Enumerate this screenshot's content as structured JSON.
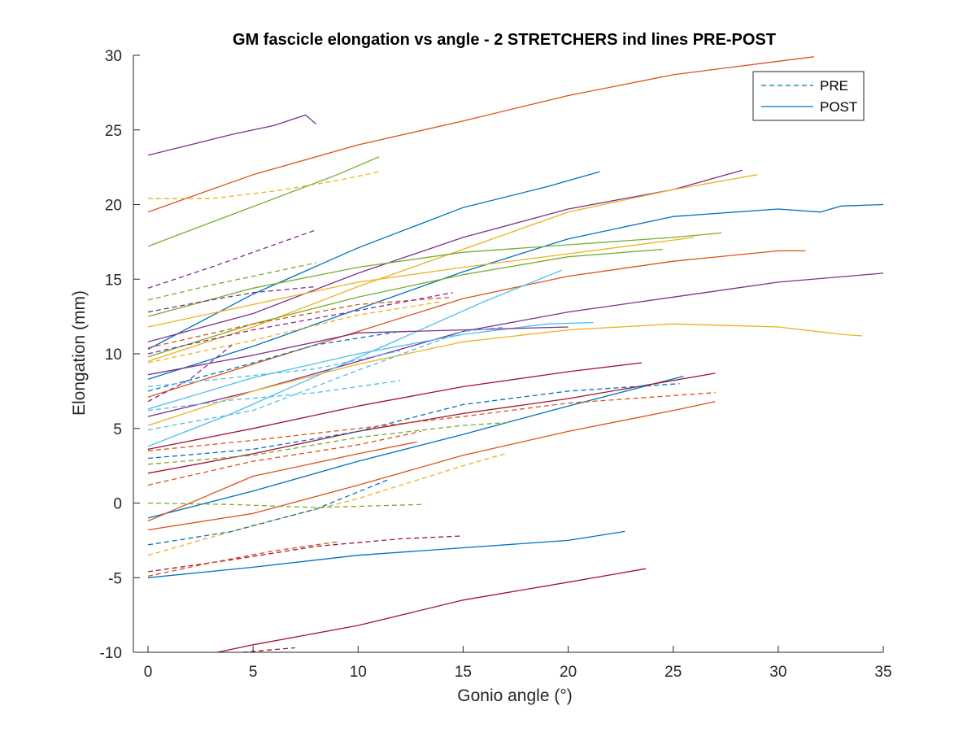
{
  "chart_data": {
    "type": "line",
    "title": "GM fascicle elongation vs angle - 2 STRETCHERS ind lines PRE-POST",
    "xlabel": "Gonio angle (°)",
    "ylabel": "Elongation (mm)",
    "xlim": [
      0,
      35
    ],
    "ylim": [
      -10,
      30
    ],
    "xticks": [
      0,
      5,
      10,
      15,
      20,
      25,
      30,
      35
    ],
    "yticks": [
      -10,
      -5,
      0,
      5,
      10,
      15,
      20,
      25,
      30
    ],
    "xtick_labels": [
      "0",
      "5",
      "10",
      "15",
      "20",
      "25",
      "30",
      "35"
    ],
    "ytick_labels": [
      "-10",
      "-5",
      "0",
      "5",
      "10",
      "15",
      "20",
      "25",
      "30"
    ],
    "grid": false,
    "legend": {
      "placement": "top-right",
      "entries": [
        {
          "label": "PRE",
          "style": "dashed",
          "color": "#0072BD"
        },
        {
          "label": "POST",
          "style": "solid",
          "color": "#0072BD"
        }
      ]
    },
    "colors": {
      "blue": "#0072BD",
      "orange": "#D95319",
      "yellow": "#EDB120",
      "purple": "#7E2F8E",
      "green": "#77AC30",
      "cyan": "#4DBEEE",
      "maroon": "#A2142F"
    },
    "series": [
      {
        "style": "solid",
        "color": "#D95319",
        "x": [
          0,
          5,
          10,
          15,
          20,
          25,
          30,
          31.7
        ],
        "y": [
          19.5,
          22.0,
          24.0,
          25.6,
          27.3,
          28.7,
          29.6,
          29.9
        ]
      },
      {
        "style": "solid",
        "color": "#7E2F8E",
        "x": [
          0,
          2,
          4,
          6,
          7.5,
          8
        ],
        "y": [
          23.3,
          24.0,
          24.7,
          25.3,
          26.0,
          25.4
        ]
      },
      {
        "style": "solid",
        "color": "#77AC30",
        "x": [
          0,
          3,
          6,
          9,
          11
        ],
        "y": [
          17.2,
          18.8,
          20.4,
          22.0,
          23.2
        ]
      },
      {
        "style": "dashed",
        "color": "#EDB120",
        "x": [
          0,
          3,
          6,
          9,
          11
        ],
        "y": [
          20.4,
          20.4,
          20.9,
          21.6,
          22.2
        ]
      },
      {
        "style": "solid",
        "color": "#0072BD",
        "x": [
          0,
          5,
          10,
          15,
          19,
          21.5
        ],
        "y": [
          10.3,
          14.0,
          17.1,
          19.8,
          21.2,
          22.2
        ]
      },
      {
        "style": "solid",
        "color": "#7E2F8E",
        "x": [
          0,
          5,
          10,
          15,
          20,
          25,
          28.3
        ],
        "y": [
          10.8,
          12.7,
          15.4,
          17.8,
          19.7,
          21.0,
          22.3
        ]
      },
      {
        "style": "solid",
        "color": "#EDB120",
        "x": [
          0,
          5,
          10,
          15,
          20,
          25,
          29
        ],
        "y": [
          9.5,
          11.8,
          14.5,
          17.0,
          19.5,
          21.0,
          22.0
        ]
      },
      {
        "style": "solid",
        "color": "#0072BD",
        "x": [
          0,
          5,
          10,
          15,
          20,
          25,
          30,
          32,
          33,
          35
        ],
        "y": [
          8.3,
          10.5,
          13.0,
          15.5,
          17.7,
          19.2,
          19.7,
          19.5,
          19.9,
          20.0
        ]
      },
      {
        "style": "solid",
        "color": "#77AC30",
        "x": [
          0,
          5,
          10,
          15,
          20,
          25,
          27.3
        ],
        "y": [
          12.5,
          14.4,
          15.8,
          16.8,
          17.3,
          17.8,
          18.1
        ]
      },
      {
        "style": "solid",
        "color": "#EDB120",
        "x": [
          0,
          5,
          10,
          15,
          20,
          26
        ],
        "y": [
          11.8,
          13.3,
          14.8,
          15.8,
          16.7,
          17.8
        ]
      },
      {
        "style": "solid",
        "color": "#77AC30",
        "x": [
          0,
          5,
          10,
          15,
          20,
          24.5
        ],
        "y": [
          9.8,
          12.0,
          13.8,
          15.3,
          16.5,
          17.0
        ]
      },
      {
        "style": "solid",
        "color": "#D95319",
        "x": [
          0,
          5,
          10,
          15,
          20,
          25,
          30,
          31.3
        ],
        "y": [
          7.1,
          9.3,
          11.5,
          13.7,
          15.2,
          16.2,
          16.9,
          16.9
        ]
      },
      {
        "style": "solid",
        "color": "#7E2F8E",
        "x": [
          0,
          5,
          10,
          15,
          20,
          25,
          30,
          35
        ],
        "y": [
          5.8,
          7.5,
          9.5,
          11.5,
          12.8,
          13.8,
          14.8,
          15.4
        ]
      },
      {
        "style": "solid",
        "color": "#4DBEEE",
        "x": [
          0,
          4,
          8,
          12,
          16,
          19.7
        ],
        "y": [
          3.8,
          6.0,
          8.5,
          11.0,
          13.5,
          15.6
        ]
      },
      {
        "style": "solid",
        "color": "#EDB120",
        "x": [
          0,
          5,
          10,
          15,
          20,
          25,
          30,
          33,
          34
        ],
        "y": [
          5.2,
          7.5,
          9.3,
          10.8,
          11.6,
          12.0,
          11.8,
          11.3,
          11.2
        ]
      },
      {
        "style": "solid",
        "color": "#4DBEEE",
        "x": [
          0,
          5,
          10,
          15,
          19,
          21.2
        ],
        "y": [
          6.3,
          8.4,
          10.0,
          11.3,
          12.0,
          12.1
        ]
      },
      {
        "style": "solid",
        "color": "#7E2F8E",
        "x": [
          0,
          5,
          10,
          15,
          20
        ],
        "y": [
          8.6,
          9.9,
          11.4,
          11.6,
          11.8
        ]
      },
      {
        "style": "solid",
        "color": "#A2142F",
        "x": [
          0,
          5,
          10,
          15,
          20,
          23.5
        ],
        "y": [
          3.6,
          5.0,
          6.5,
          7.8,
          8.8,
          9.4
        ]
      },
      {
        "style": "solid",
        "color": "#0072BD",
        "x": [
          0,
          5,
          10,
          15,
          20,
          25.5
        ],
        "y": [
          -1.0,
          0.8,
          2.8,
          4.6,
          6.5,
          8.5
        ]
      },
      {
        "style": "solid",
        "color": "#A2142F",
        "x": [
          0,
          5,
          10,
          15,
          20,
          27
        ],
        "y": [
          2.0,
          3.3,
          4.8,
          6.0,
          7.0,
          8.7
        ]
      },
      {
        "style": "solid",
        "color": "#D95319",
        "x": [
          0,
          5,
          10,
          15,
          20,
          25,
          27
        ],
        "y": [
          -1.8,
          -0.7,
          1.2,
          3.2,
          4.8,
          6.2,
          6.8
        ]
      },
      {
        "style": "solid",
        "color": "#D95319",
        "x": [
          0,
          5,
          10,
          12.8
        ],
        "y": [
          -1.2,
          1.8,
          3.3,
          4.1
        ]
      },
      {
        "style": "solid",
        "color": "#0072BD",
        "x": [
          0,
          5,
          10,
          15,
          20,
          22.7
        ],
        "y": [
          -5.0,
          -4.3,
          -3.5,
          -3.0,
          -2.5,
          -1.9
        ]
      },
      {
        "style": "solid",
        "color": "#A2142F",
        "x": [
          3.3,
          5,
          10,
          15,
          20,
          23.7
        ],
        "y": [
          -10.0,
          -9.5,
          -8.2,
          -6.5,
          -5.3,
          -4.4
        ]
      },
      {
        "style": "dashed",
        "color": "#7E2F8E",
        "x": [
          0,
          3,
          6,
          8
        ],
        "y": [
          14.4,
          15.8,
          17.3,
          18.3
        ]
      },
      {
        "style": "dashed",
        "color": "#77AC30",
        "x": [
          0,
          3,
          6,
          8
        ],
        "y": [
          13.6,
          14.6,
          15.5,
          16.1
        ]
      },
      {
        "style": "dashed",
        "color": "#7E2F8E",
        "x": [
          0,
          3,
          5,
          8
        ],
        "y": [
          12.8,
          13.6,
          14.1,
          14.5
        ]
      },
      {
        "style": "dashed",
        "color": "#D95319",
        "x": [
          0,
          5,
          10,
          14.5
        ],
        "y": [
          10.4,
          12.0,
          13.3,
          13.8
        ]
      },
      {
        "style": "dashed",
        "color": "#7E2F8E",
        "x": [
          0,
          5,
          10,
          14.5
        ],
        "y": [
          10.0,
          11.6,
          12.9,
          14.1
        ]
      },
      {
        "style": "dashed",
        "color": "#EDB120",
        "x": [
          0,
          5,
          10,
          14
        ],
        "y": [
          9.4,
          10.9,
          12.6,
          13.5
        ]
      },
      {
        "style": "dashed",
        "color": "#0072BD",
        "x": [
          0,
          4,
          8,
          12
        ],
        "y": [
          7.5,
          9.0,
          10.6,
          11.5
        ]
      },
      {
        "style": "dashed",
        "color": "#4DBEEE",
        "x": [
          0,
          4,
          8,
          12
        ],
        "y": [
          7.8,
          8.4,
          9.0,
          10.2
        ]
      },
      {
        "style": "dashed",
        "color": "#7E2F8E",
        "x": [
          0,
          2,
          4
        ],
        "y": [
          6.8,
          8.3,
          10.6
        ]
      },
      {
        "style": "dashed",
        "color": "#4DBEEE",
        "x": [
          0,
          4,
          8,
          12
        ],
        "y": [
          6.2,
          6.9,
          7.4,
          8.2
        ]
      },
      {
        "style": "dashed",
        "color": "#4DBEEE",
        "x": [
          0,
          5,
          10,
          15,
          17
        ],
        "y": [
          4.9,
          6.2,
          8.9,
          11.5,
          11.8
        ]
      },
      {
        "style": "dashed",
        "color": "#0072BD",
        "x": [
          0,
          5,
          10,
          15,
          20,
          25.3
        ],
        "y": [
          3.0,
          3.6,
          4.8,
          6.6,
          7.5,
          8.0
        ]
      },
      {
        "style": "dashed",
        "color": "#D95319",
        "x": [
          0,
          5,
          10,
          15,
          20,
          27
        ],
        "y": [
          3.5,
          4.2,
          5.0,
          5.8,
          6.7,
          7.4
        ]
      },
      {
        "style": "dashed",
        "color": "#77AC30",
        "x": [
          0,
          5,
          10,
          15,
          17.2
        ],
        "y": [
          2.6,
          3.2,
          4.4,
          5.2,
          5.4
        ]
      },
      {
        "style": "dashed",
        "color": "#D95319",
        "x": [
          0,
          5,
          10,
          13
        ],
        "y": [
          1.2,
          2.8,
          3.9,
          4.8
        ]
      },
      {
        "style": "dashed",
        "color": "#EDB120",
        "x": [
          0,
          5,
          10,
          15,
          17
        ],
        "y": [
          -3.5,
          -1.5,
          0.3,
          2.5,
          3.3
        ]
      },
      {
        "style": "dashed",
        "color": "#77AC30",
        "x": [
          0,
          4,
          8,
          13
        ],
        "y": [
          0.0,
          -0.1,
          -0.3,
          -0.1
        ]
      },
      {
        "style": "dashed",
        "color": "#0072BD",
        "x": [
          0,
          4,
          8,
          11.5
        ],
        "y": [
          -2.8,
          -1.9,
          -0.4,
          1.6
        ]
      },
      {
        "style": "dashed",
        "color": "#A2142F",
        "x": [
          0,
          4,
          8,
          12,
          15
        ],
        "y": [
          -4.6,
          -3.8,
          -2.9,
          -2.4,
          -2.2
        ]
      },
      {
        "style": "dashed",
        "color": "#D95319",
        "x": [
          0,
          3,
          6,
          9
        ],
        "y": [
          -4.9,
          -4.0,
          -3.2,
          -2.6
        ]
      },
      {
        "style": "dashed",
        "color": "#A2142F",
        "x": [
          4.5,
          7
        ],
        "y": [
          -10.0,
          -9.7
        ]
      }
    ]
  }
}
